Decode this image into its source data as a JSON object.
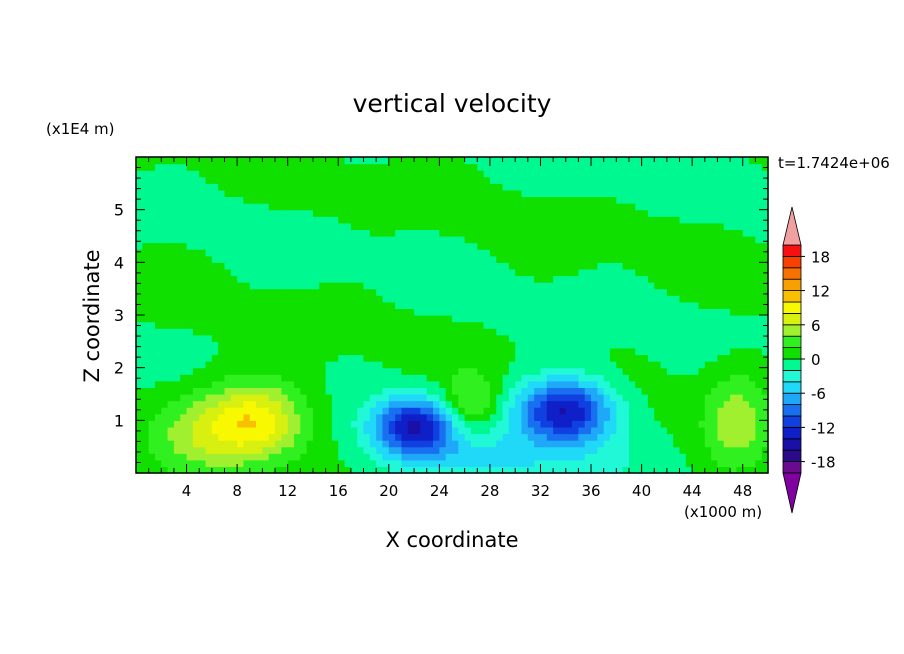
{
  "chart_data": {
    "type": "heatmap",
    "title": "vertical velocity",
    "time_label": "t=1.7424e+06",
    "xlabel": "X coordinate",
    "ylabel": "Z coordinate",
    "x_scale_note": "(x1000 m)",
    "y_scale_note": "(x1E4 m)",
    "xlim": [
      0,
      50
    ],
    "ylim": [
      0,
      6
    ],
    "x_ticks": [
      "4",
      "8",
      "12",
      "16",
      "20",
      "24",
      "28",
      "32",
      "36",
      "40",
      "44",
      "48"
    ],
    "y_ticks": [
      "1",
      "2",
      "3",
      "4",
      "5"
    ],
    "x_tick_values": [
      4,
      8,
      12,
      16,
      20,
      24,
      28,
      32,
      36,
      40,
      44,
      48
    ],
    "y_tick_values": [
      1,
      2,
      3,
      4,
      5
    ],
    "colorbar": {
      "range": [
        -20,
        20
      ],
      "step": 2,
      "labels": [
        "18",
        "12",
        "6",
        "0",
        "-6",
        "-12",
        "-18"
      ],
      "label_values": [
        18,
        12,
        6,
        0,
        -6,
        -12,
        -18
      ],
      "colors": [
        "#6a0a8f",
        "#2a0a8a",
        "#1a10a8",
        "#1020c8",
        "#1040e0",
        "#1870f0",
        "#20a8f8",
        "#20d8f8",
        "#20f8d8",
        "#00f890",
        "#10e000",
        "#30f020",
        "#a0f030",
        "#d8f010",
        "#f8f800",
        "#f8c000",
        "#f8a000",
        "#f87000",
        "#f84000",
        "#f81010"
      ],
      "over_color": "#f0a0a0",
      "under_color": "#8000a0"
    },
    "features": [
      {
        "x": 9.5,
        "z": 1.0,
        "sx": 4.0,
        "sz": 0.75,
        "amp": 9
      },
      {
        "x": 5.0,
        "z": 0.8,
        "sx": 4.0,
        "sz": 0.8,
        "amp": 4
      },
      {
        "x": 22.0,
        "z": 0.9,
        "sx": 3.2,
        "sz": 0.55,
        "amp": -13
      },
      {
        "x": 34.0,
        "z": 1.2,
        "sx": 3.8,
        "sz": 0.6,
        "amp": -14
      },
      {
        "x": 26.5,
        "z": 1.3,
        "sx": 2.2,
        "sz": 0.6,
        "amp": 5
      },
      {
        "x": 47.5,
        "z": 1.0,
        "sx": 2.5,
        "sz": 1.0,
        "amp": 5
      },
      {
        "x": 28.0,
        "z": 0.3,
        "sx": 9.0,
        "sz": 0.6,
        "amp": -4
      }
    ]
  }
}
